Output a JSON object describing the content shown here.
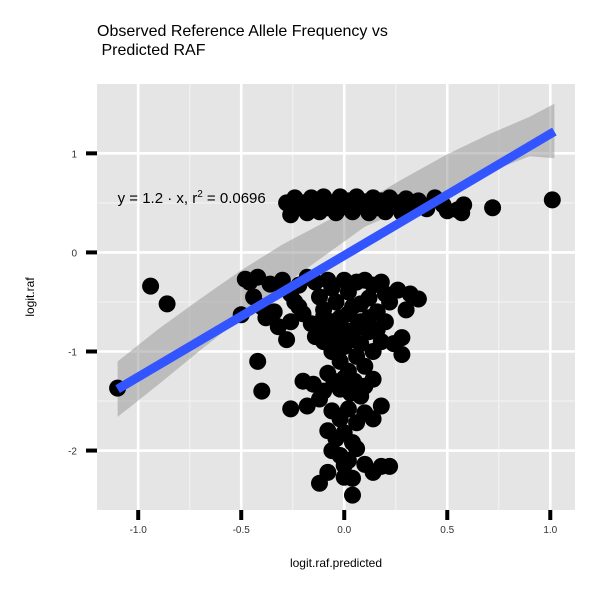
{
  "chart_data": {
    "type": "scatter",
    "title_lines": [
      "Observed Reference Allele Frequency vs",
      " Predicted RAF"
    ],
    "xlabel": "logit.raf.predicted",
    "ylabel": "logit.raf",
    "xlim": [
      -1.2,
      1.12
    ],
    "ylim": [
      -2.6,
      1.7
    ],
    "x_ticks": [
      -1.0,
      -0.5,
      0.0,
      0.5,
      1.0
    ],
    "x_tick_labels": [
      "-1.0",
      "-0.5",
      "0.0",
      "0.5",
      "1.0"
    ],
    "y_ticks": [
      -2,
      -1,
      0,
      1
    ],
    "y_tick_labels": [
      "-2",
      "-1",
      "0",
      "1"
    ],
    "grid": true,
    "background": "#e5e5e5",
    "point_color": "#000000",
    "fit_color": "#3355ff",
    "band_color": "#9a9a9a",
    "annotation": {
      "prefix": "y = 1.2 · x,  r",
      "sup": "2",
      "suffix": " = 0.0696",
      "x": -1.1,
      "y": 0.55
    },
    "fit_line": {
      "x": [
        -1.1,
        1.02
      ],
      "y": [
        -1.38,
        1.22
      ]
    },
    "confidence_band": {
      "x": [
        -1.1,
        -0.9,
        -0.7,
        -0.5,
        -0.3,
        -0.1,
        0.1,
        0.3,
        0.5,
        0.7,
        0.9,
        1.02
      ],
      "upper": [
        -1.1,
        -0.77,
        -0.47,
        -0.18,
        0.08,
        0.3,
        0.52,
        0.76,
        0.99,
        1.19,
        1.37,
        1.5
      ],
      "lower": [
        -1.66,
        -1.33,
        -0.99,
        -0.66,
        -0.34,
        -0.04,
        0.26,
        0.44,
        0.62,
        0.81,
        0.97,
        0.95
      ]
    },
    "points": [
      [
        -1.1,
        -1.37
      ],
      [
        -0.94,
        -0.34
      ],
      [
        -0.86,
        -0.52
      ],
      [
        -0.5,
        -0.63
      ],
      [
        -0.42,
        -1.1
      ],
      [
        -0.4,
        -1.4
      ],
      [
        -0.48,
        -0.27
      ],
      [
        -0.46,
        -0.3
      ],
      [
        -0.44,
        -0.45
      ],
      [
        -0.42,
        -0.25
      ],
      [
        -0.4,
        -0.55
      ],
      [
        -0.38,
        -0.66
      ],
      [
        -0.36,
        -0.32
      ],
      [
        -0.34,
        -0.6
      ],
      [
        -0.32,
        -0.75
      ],
      [
        -0.3,
        -0.28
      ],
      [
        -0.28,
        -0.88
      ],
      [
        -0.26,
        -0.42
      ],
      [
        -0.24,
        -0.5
      ],
      [
        -0.22,
        -0.33
      ],
      [
        -0.2,
        -0.62
      ],
      [
        -0.18,
        -0.25
      ],
      [
        -0.16,
        -0.72
      ],
      [
        -0.14,
        -0.3
      ],
      [
        -0.12,
        -0.45
      ],
      [
        -0.1,
        -0.58
      ],
      [
        -0.08,
        -0.28
      ],
      [
        -0.06,
        -0.36
      ],
      [
        -0.04,
        -0.5
      ],
      [
        -0.02,
        -0.66
      ],
      [
        0.0,
        -0.28
      ],
      [
        0.02,
        -0.4
      ],
      [
        0.04,
        -0.55
      ],
      [
        0.06,
        -0.3
      ],
      [
        0.08,
        -0.7
      ],
      [
        0.1,
        -0.28
      ],
      [
        0.12,
        -0.46
      ],
      [
        0.14,
        -0.33
      ],
      [
        0.16,
        -0.6
      ],
      [
        0.18,
        -0.3
      ],
      [
        0.2,
        -0.42
      ],
      [
        0.22,
        -0.5
      ],
      [
        0.24,
        -0.92
      ],
      [
        0.26,
        -0.38
      ],
      [
        0.28,
        -0.86
      ],
      [
        0.3,
        -0.58
      ],
      [
        0.32,
        -0.42
      ],
      [
        0.36,
        -0.47
      ],
      [
        0.28,
        -1.03
      ],
      [
        -0.12,
        -0.75
      ],
      [
        -0.1,
        -0.9
      ],
      [
        -0.08,
        -0.8
      ],
      [
        -0.06,
        -1.0
      ],
      [
        -0.04,
        -0.85
      ],
      [
        -0.02,
        -1.1
      ],
      [
        0.0,
        -0.95
      ],
      [
        0.02,
        -1.2
      ],
      [
        0.04,
        -0.88
      ],
      [
        0.06,
        -1.05
      ],
      [
        0.08,
        -0.92
      ],
      [
        0.1,
        -1.15
      ],
      [
        0.12,
        -0.8
      ],
      [
        0.14,
        -1.0
      ],
      [
        0.16,
        -0.78
      ],
      [
        0.18,
        -0.9
      ],
      [
        -0.06,
        -0.7
      ],
      [
        0.0,
        -0.78
      ],
      [
        0.06,
        -0.76
      ],
      [
        -0.1,
        -0.65
      ],
      [
        -0.08,
        -1.22
      ],
      [
        -0.05,
        -1.3
      ],
      [
        -0.02,
        -1.38
      ],
      [
        0.0,
        -1.27
      ],
      [
        0.03,
        -1.42
      ],
      [
        0.05,
        -1.3
      ],
      [
        0.08,
        -1.45
      ],
      [
        0.1,
        -1.35
      ],
      [
        -0.1,
        -1.4
      ],
      [
        -0.15,
        -1.33
      ],
      [
        -0.2,
        -1.3
      ],
      [
        0.14,
        -1.28
      ],
      [
        0.18,
        -1.55
      ],
      [
        -0.26,
        -1.58
      ],
      [
        -0.18,
        -1.55
      ],
      [
        -0.12,
        -1.48
      ],
      [
        -0.06,
        -1.6
      ],
      [
        -0.02,
        -1.68
      ],
      [
        0.02,
        -1.58
      ],
      [
        0.06,
        -1.72
      ],
      [
        0.1,
        -1.62
      ],
      [
        0.14,
        -1.68
      ],
      [
        -0.08,
        -1.8
      ],
      [
        -0.04,
        -1.88
      ],
      [
        0.0,
        -1.82
      ],
      [
        0.04,
        -1.92
      ],
      [
        -0.06,
        -2.0
      ],
      [
        -0.02,
        -2.05
      ],
      [
        0.02,
        -2.1
      ],
      [
        0.06,
        -1.98
      ],
      [
        0.0,
        -2.15
      ],
      [
        -0.08,
        -2.22
      ],
      [
        0.04,
        -2.28
      ],
      [
        0.1,
        -2.14
      ],
      [
        0.14,
        -2.22
      ],
      [
        0.18,
        -2.16
      ],
      [
        0.22,
        -2.16
      ],
      [
        0.0,
        -2.27
      ],
      [
        -0.12,
        -2.33
      ],
      [
        0.04,
        -2.45
      ],
      [
        -0.3,
        -0.35
      ],
      [
        -0.26,
        -0.7
      ],
      [
        -0.22,
        -0.55
      ],
      [
        -0.14,
        -0.85
      ],
      [
        0.02,
        -0.62
      ],
      [
        0.08,
        -0.52
      ],
      [
        0.12,
        -0.66
      ],
      [
        0.2,
        -0.7
      ],
      [
        -0.28,
        0.5
      ],
      [
        -0.26,
        0.38
      ],
      [
        -0.24,
        0.55
      ],
      [
        -0.22,
        0.45
      ],
      [
        -0.2,
        0.5
      ],
      [
        -0.18,
        0.4
      ],
      [
        -0.16,
        0.55
      ],
      [
        -0.14,
        0.47
      ],
      [
        -0.12,
        0.41
      ],
      [
        -0.1,
        0.56
      ],
      [
        -0.08,
        0.45
      ],
      [
        -0.06,
        0.5
      ],
      [
        -0.04,
        0.4
      ],
      [
        -0.02,
        0.56
      ],
      [
        0.0,
        0.46
      ],
      [
        0.02,
        0.52
      ],
      [
        0.04,
        0.41
      ],
      [
        0.06,
        0.56
      ],
      [
        0.08,
        0.47
      ],
      [
        0.1,
        0.51
      ],
      [
        0.12,
        0.4
      ],
      [
        0.14,
        0.55
      ],
      [
        0.16,
        0.45
      ],
      [
        0.18,
        0.52
      ],
      [
        0.2,
        0.41
      ],
      [
        0.22,
        0.55
      ],
      [
        0.24,
        0.47
      ],
      [
        0.26,
        0.5
      ],
      [
        0.28,
        0.4
      ],
      [
        0.3,
        0.54
      ],
      [
        0.33,
        0.46
      ],
      [
        0.36,
        0.52
      ],
      [
        0.4,
        0.44
      ],
      [
        0.44,
        0.55
      ],
      [
        0.48,
        0.48
      ],
      [
        0.5,
        0.42
      ],
      [
        0.55,
        0.43
      ],
      [
        0.57,
        0.4
      ],
      [
        0.58,
        0.48
      ],
      [
        0.72,
        0.45
      ],
      [
        1.01,
        0.53
      ]
    ]
  }
}
